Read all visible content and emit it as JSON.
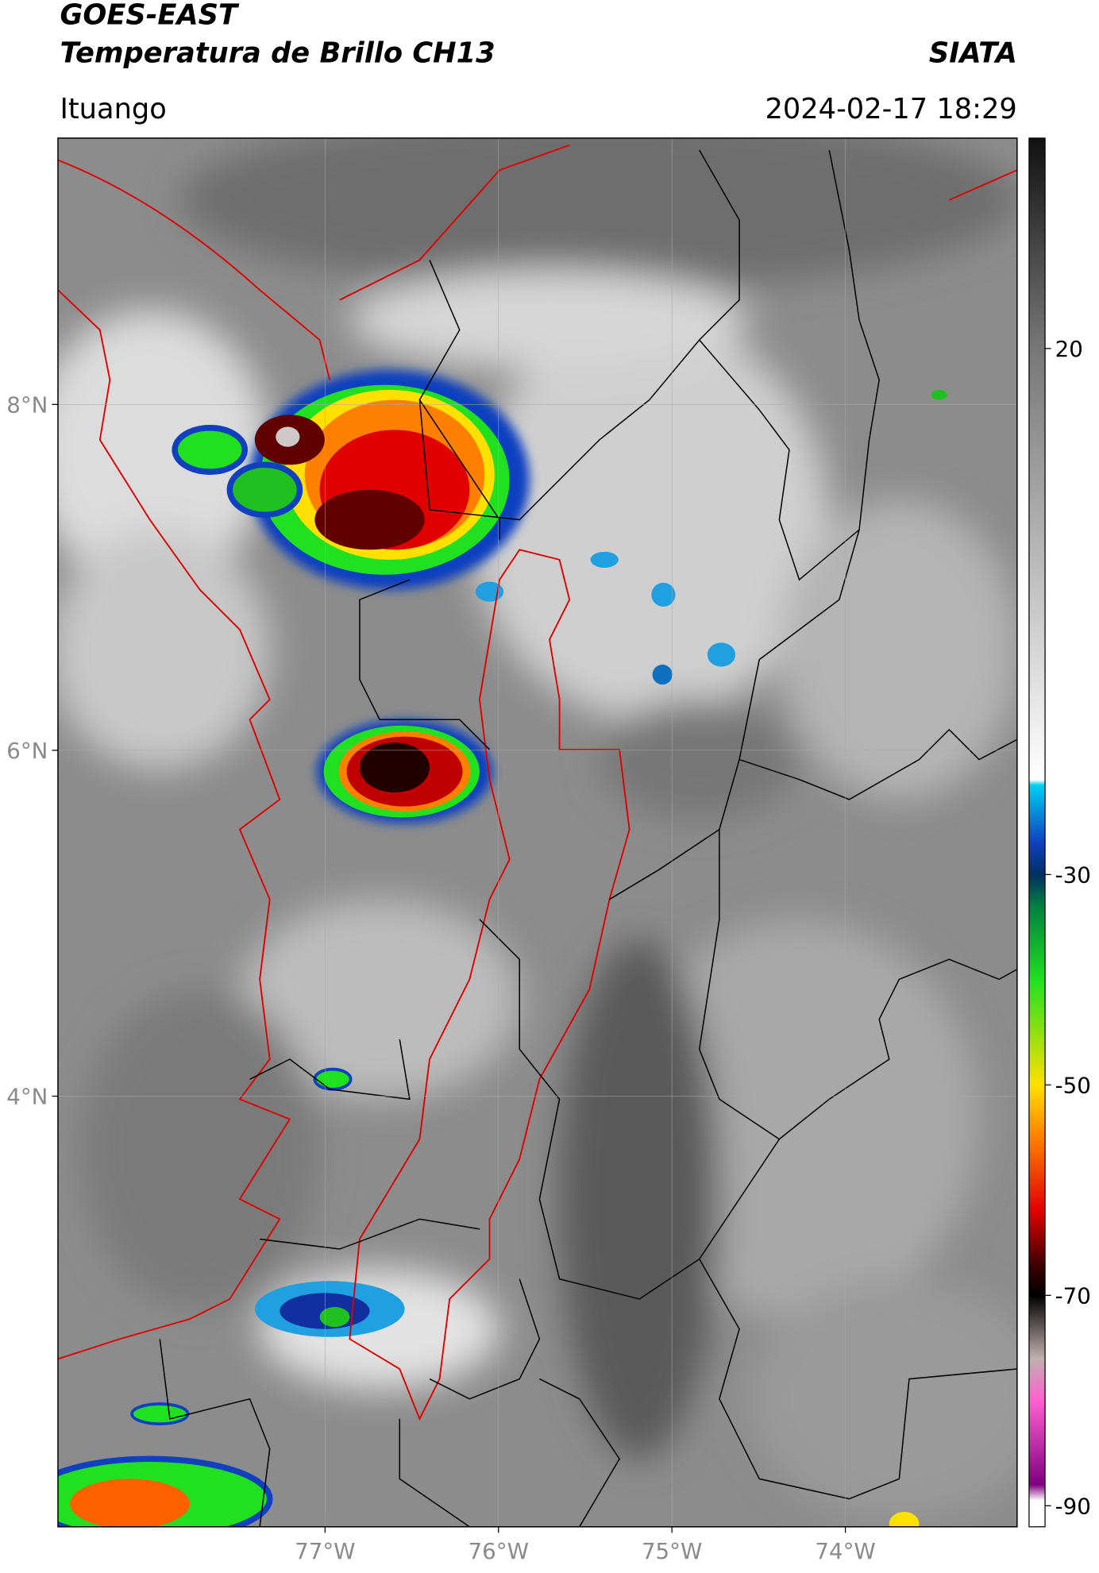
{
  "header": {
    "satellite": "GOES-EAST",
    "product": "Temperatura de Brillo CH13",
    "agency": "SIATA",
    "location": "Ituango",
    "datetime": "2024-02-17 18:29"
  },
  "map": {
    "lonlim": [
      -78.54,
      -73.01
    ],
    "latlim": [
      1.51,
      9.54
    ],
    "lonticks": [
      {
        "value": -77,
        "label": "77°W"
      },
      {
        "value": -76,
        "label": "76°W"
      },
      {
        "value": -75,
        "label": "75°W"
      },
      {
        "value": -74,
        "label": "74°W"
      }
    ],
    "latticks": [
      {
        "value": 8,
        "label": "8°N"
      },
      {
        "value": 6,
        "label": "6°N"
      },
      {
        "value": 4,
        "label": "4°N"
      }
    ]
  },
  "colorbar": {
    "lim": [
      -92,
      40
    ],
    "ticks": [
      20,
      -30,
      -50,
      -70,
      -90
    ],
    "colors": [
      {
        "value": 40,
        "color": "#111111"
      },
      {
        "value": 20,
        "color": "#777777"
      },
      {
        "value": -21,
        "color": "#ffffff"
      },
      {
        "value": -21.5,
        "color": "#00d0f0"
      },
      {
        "value": -27,
        "color": "#1040c0"
      },
      {
        "value": -30,
        "color": "#003060"
      },
      {
        "value": -33,
        "color": "#008040"
      },
      {
        "value": -40,
        "color": "#20e020"
      },
      {
        "value": -50,
        "color": "#ffe000"
      },
      {
        "value": -55,
        "color": "#ff8000"
      },
      {
        "value": -62,
        "color": "#e00000"
      },
      {
        "value": -67,
        "color": "#400000"
      },
      {
        "value": -70,
        "color": "#000000"
      },
      {
        "value": -76,
        "color": "#c0b0b0"
      },
      {
        "value": -80,
        "color": "#ff60d0"
      },
      {
        "value": -88,
        "color": "#800080"
      },
      {
        "value": -89.5,
        "color": "#ffffff"
      }
    ]
  }
}
